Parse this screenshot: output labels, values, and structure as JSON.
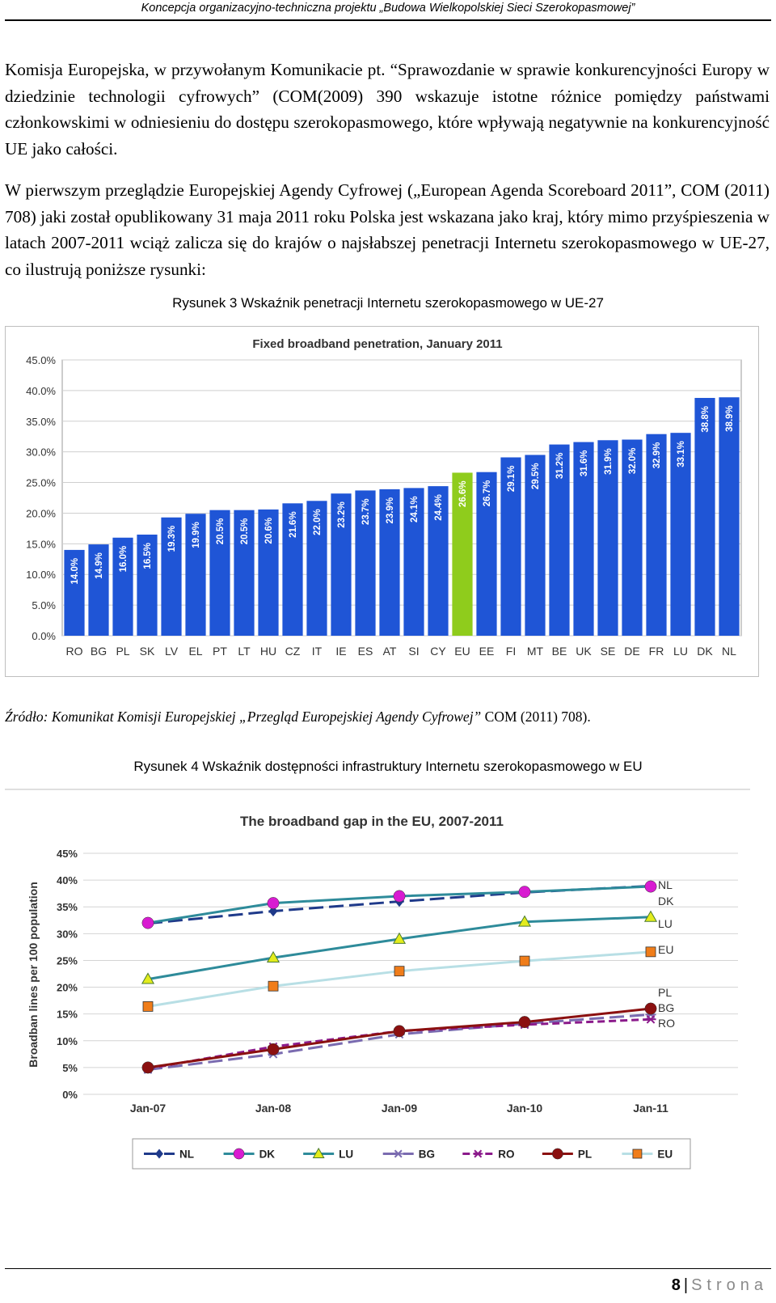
{
  "header": {
    "title": "Koncepcja organizacyjno-techniczna projektu „Budowa Wielkopolskiej Sieci Szerokopasmowej”"
  },
  "paragraphs": [
    "Komisja Europejska, w przywołanym Komunikacie pt. “Sprawozdanie w sprawie konkurencyjności Europy w dziedzinie technologii cyfrowych” (COM(2009) 390 wskazuje istotne różnice pomiędzy państwami członkowskimi w odniesieniu do dostępu szerokopasmowego, które wpływają negatywnie na konkurencyjność UE jako całości.",
    "W pierwszym przeglądzie Europejskiej Agendy Cyfrowej („European Agenda Scoreboard 2011”, COM (2011) 708) jaki został opublikowany 31 maja 2011 roku Polska jest wskazana jako kraj, który mimo przyśpieszenia w latach 2007-2011 wciąż zalicza się do krajów o najsłabszej penetracji Internetu szerokopasmowego w UE-27, co ilustrują poniższe rysunki:"
  ],
  "figure3": {
    "caption": "Rysunek 3 Wskaźnik penetracji Internetu szerokopasmowego w UE-27"
  },
  "source": {
    "italic": "Źródło: Komunikat Komisji Europejskiej „Przegląd Europejskiej  Agendy Cyfrowej”",
    "regular": " COM (2011) 708)."
  },
  "figure4": {
    "caption": "Rysunek 4 Wskaźnik dostępności infrastruktury Internetu szerokopasmowego w EU"
  },
  "footer": {
    "page_number": "8",
    "separator": "|",
    "word": "Strona"
  },
  "chart_data": [
    {
      "type": "bar",
      "title": "Fixed broadband penetration, January 2011",
      "categories": [
        "RO",
        "BG",
        "PL",
        "SK",
        "LV",
        "EL",
        "PT",
        "LT",
        "HU",
        "CZ",
        "IT",
        "IE",
        "ES",
        "AT",
        "SI",
        "CY",
        "EU",
        "EE",
        "FI",
        "MT",
        "BE",
        "UK",
        "SE",
        "DE",
        "FR",
        "LU",
        "DK",
        "NL"
      ],
      "values": [
        14.0,
        14.9,
        16.0,
        16.5,
        19.3,
        19.9,
        20.5,
        20.5,
        20.6,
        21.6,
        22.0,
        23.2,
        23.7,
        23.9,
        24.1,
        24.4,
        26.6,
        26.7,
        29.1,
        29.5,
        31.2,
        31.6,
        31.9,
        32.0,
        32.9,
        33.1,
        38.8,
        38.9
      ],
      "data_labels": [
        "14.0%",
        "14.9%",
        "16.0%",
        "16.5%",
        "19.3%",
        "19.9%",
        "20.5%",
        "20.5%",
        "20.6%",
        "21.6%",
        "22.0%",
        "23.2%",
        "23.7%",
        "23.9%",
        "24.1%",
        "24.4%",
        "26.6%",
        "26.7%",
        "29.1%",
        "29.5%",
        "31.2%",
        "31.6%",
        "31.9%",
        "32.0%",
        "32.9%",
        "33.1%",
        "38.8%",
        "38.9%"
      ],
      "highlight_category": "EU",
      "bar_color": "#1f55d6",
      "highlight_color": "#8fcc1c",
      "ylim": [
        0,
        45
      ],
      "yticks": [
        "0.0%",
        "5.0%",
        "10.0%",
        "15.0%",
        "20.0%",
        "25.0%",
        "30.0%",
        "35.0%",
        "40.0%",
        "45.0%"
      ],
      "grid": true
    },
    {
      "type": "line",
      "title": "The broadband gap in the EU, 2007-2011",
      "ylabel": "Broadban lines per 100 population",
      "x": [
        "Jan-07",
        "Jan-08",
        "Jan-09",
        "Jan-10",
        "Jan-11"
      ],
      "ylim": [
        0,
        45
      ],
      "yticks": [
        "0%",
        "5%",
        "10%",
        "15%",
        "20%",
        "25%",
        "30%",
        "35%",
        "40%",
        "45%"
      ],
      "grid": true,
      "legend_position": "bottom",
      "series": [
        {
          "name": "NL",
          "values": [
            31.9,
            34.2,
            36.0,
            37.7,
            38.9
          ],
          "color": "#1f3a8a",
          "dash": "long",
          "marker": "diamond"
        },
        {
          "name": "DK",
          "values": [
            32.0,
            35.7,
            37.0,
            37.8,
            38.8
          ],
          "color": "#2e8b9a",
          "dash": "solid",
          "marker": "circle",
          "marker_color": "#d81bd1"
        },
        {
          "name": "LU",
          "values": [
            21.5,
            25.5,
            29.0,
            32.2,
            33.1
          ],
          "color": "#2e8b9a",
          "dash": "solid",
          "marker": "triangle",
          "marker_color": "#e3ec1c"
        },
        {
          "name": "BG",
          "values": [
            4.6,
            7.5,
            11.2,
            13.2,
            14.9
          ],
          "color": "#7a6bb0",
          "dash": "long",
          "marker": "asterisk"
        },
        {
          "name": "RO",
          "values": [
            4.8,
            8.9,
            11.8,
            13.0,
            14.0
          ],
          "color": "#8b1a8b",
          "dash": "short",
          "marker": "asterisk"
        },
        {
          "name": "PL",
          "values": [
            5.0,
            8.4,
            11.8,
            13.5,
            16.0
          ],
          "color": "#8b1010",
          "dash": "solid",
          "marker": "circle"
        },
        {
          "name": "EU",
          "values": [
            16.4,
            20.2,
            23.0,
            24.9,
            26.6
          ],
          "color": "#b8dfe5",
          "dash": "solid",
          "marker": "square",
          "marker_color": "#f07d1a"
        }
      ],
      "end_labels": [
        "NL",
        "DK",
        "LU",
        "EU",
        "PL",
        "BG",
        "RO"
      ]
    }
  ]
}
